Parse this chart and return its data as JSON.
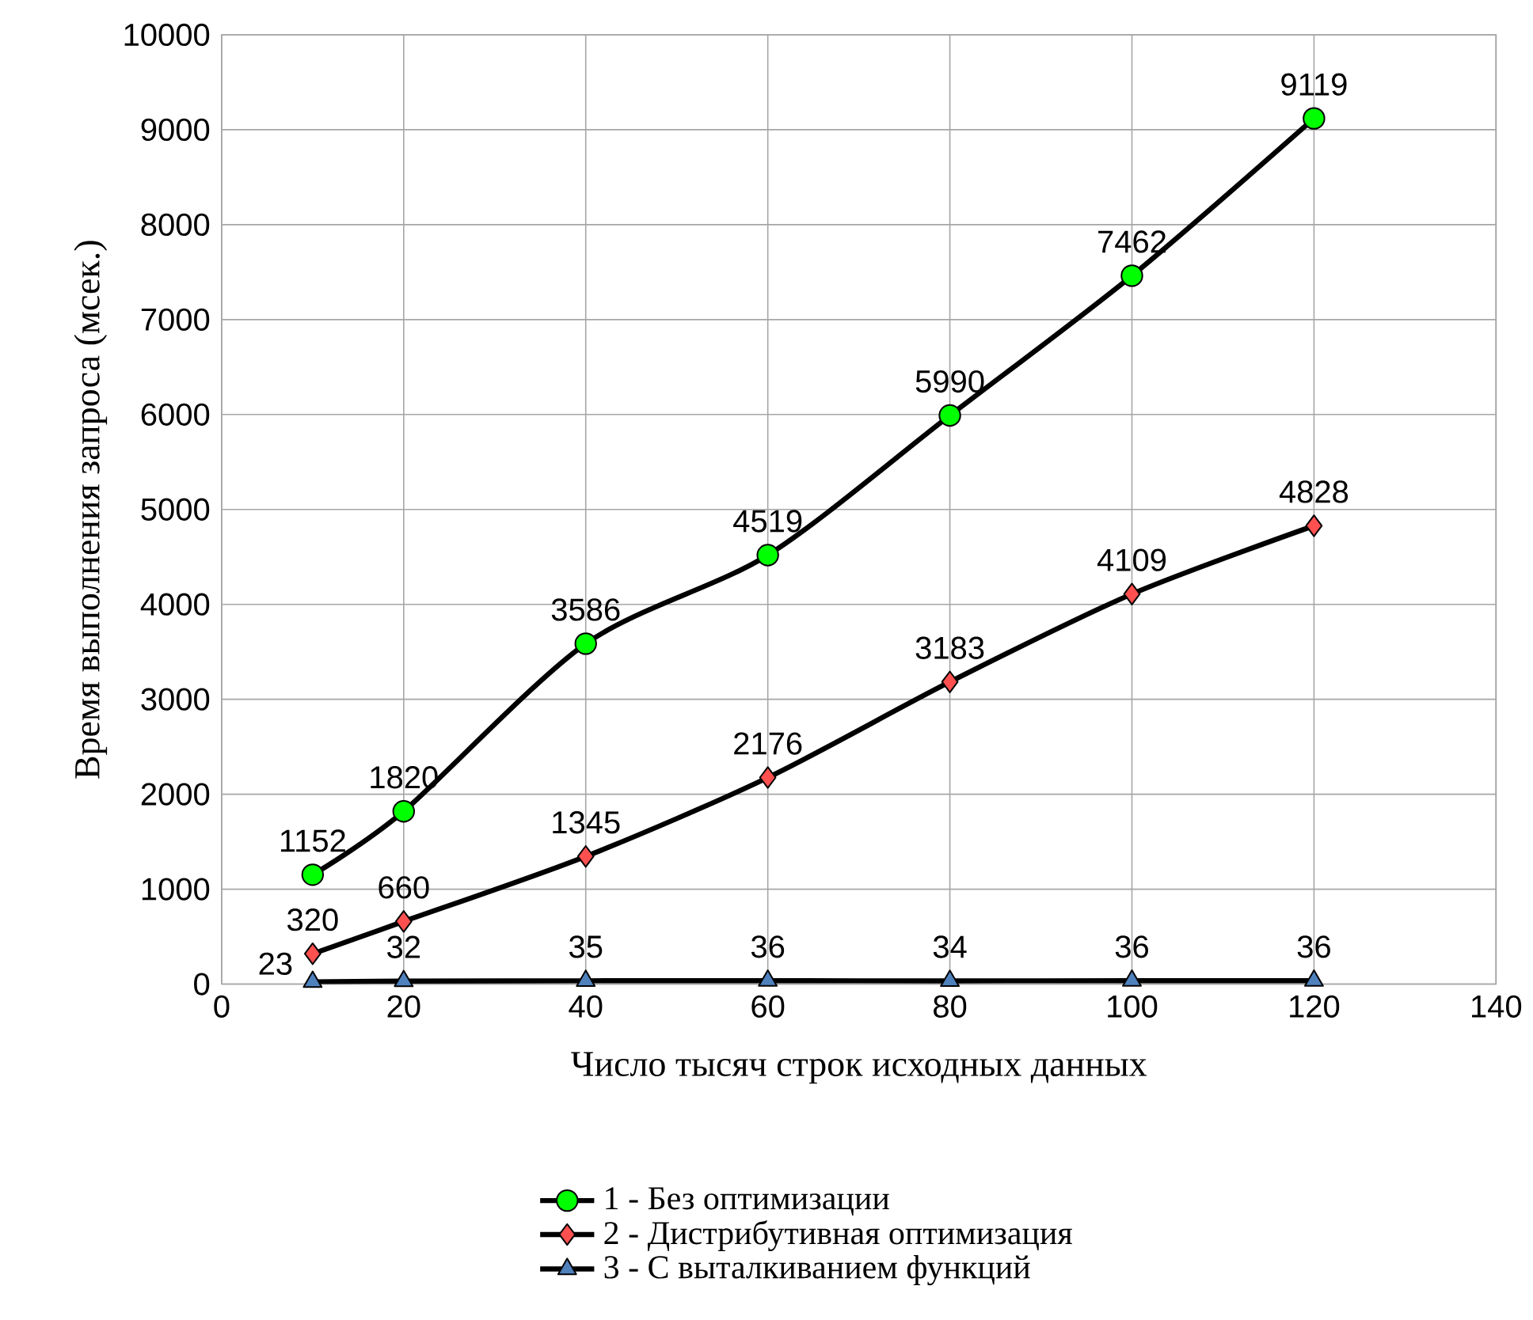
{
  "chart_data": {
    "type": "line",
    "xlabel": "Число тысяч строк исходных данных",
    "ylabel": "Время  выполнения  запроса  (мсек.)",
    "x": [
      10,
      20,
      40,
      60,
      80,
      100,
      120
    ],
    "series": [
      {
        "name": "1 - Без оптимизации",
        "color": "#00ff00",
        "marker": "circle",
        "values": [
          1152,
          1820,
          3586,
          4519,
          5990,
          7462,
          9119
        ]
      },
      {
        "name": "2 - Дистрибутивная оптимизация",
        "color": "#ff5050",
        "marker": "diamond",
        "values": [
          320,
          660,
          1345,
          2176,
          3183,
          4109,
          4828
        ]
      },
      {
        "name": "3 - С выталкиванием функций",
        "color": "#4f81bd",
        "marker": "triangle",
        "values": [
          23,
          32,
          35,
          36,
          34,
          36,
          36
        ]
      }
    ],
    "xlim": [
      0,
      140
    ],
    "xticks": [
      0,
      20,
      40,
      60,
      80,
      100,
      120,
      140
    ],
    "ylim": [
      0,
      10000
    ],
    "yticks": [
      0,
      1000,
      2000,
      3000,
      4000,
      5000,
      6000,
      7000,
      8000,
      9000,
      10000
    ],
    "grid": true,
    "legend": "bottom",
    "data_labels": true,
    "line_style": "solid"
  }
}
